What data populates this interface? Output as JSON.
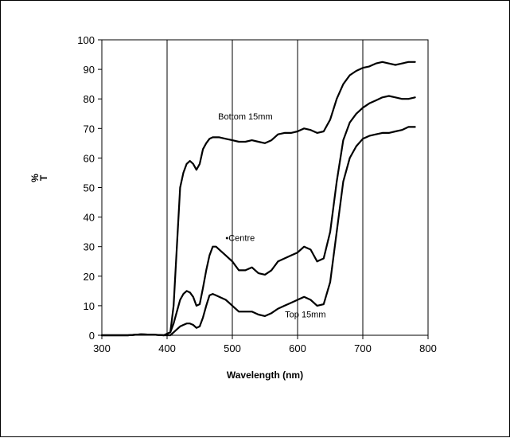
{
  "chart_data": {
    "type": "line",
    "title": "",
    "xlabel": "Wavelength (nm)",
    "ylabel": "%\nT",
    "xlim": [
      300,
      800
    ],
    "ylim": [
      0,
      100
    ],
    "xticks": [
      300,
      400,
      500,
      600,
      700,
      800
    ],
    "yticks": [
      0,
      10,
      20,
      30,
      40,
      50,
      60,
      70,
      80,
      90,
      100
    ],
    "grid": "vertical",
    "legend": "none",
    "line_color": "#000000",
    "series": [
      {
        "name": "Bottom 15mm",
        "x": [
          300,
          320,
          340,
          360,
          380,
          395,
          405,
          410,
          415,
          420,
          425,
          430,
          435,
          440,
          445,
          450,
          455,
          460,
          465,
          470,
          475,
          480,
          490,
          500,
          510,
          520,
          530,
          540,
          550,
          560,
          570,
          580,
          590,
          600,
          610,
          620,
          630,
          640,
          650,
          660,
          670,
          680,
          690,
          700,
          710,
          720,
          730,
          740,
          750,
          760,
          770,
          780
        ],
        "y": [
          0,
          0,
          0,
          0.3,
          0.2,
          0,
          1,
          10,
          30,
          50,
          55,
          58,
          59,
          58,
          56,
          58,
          63,
          65,
          66.5,
          67,
          67,
          67,
          66.5,
          66,
          65.5,
          65.5,
          66,
          65.5,
          65,
          66,
          68,
          68.5,
          68.5,
          69,
          70,
          69.5,
          68.5,
          69,
          73,
          80,
          85,
          88,
          89.5,
          90.5,
          91,
          92,
          92.5,
          92,
          91.5,
          92,
          92.5,
          92.5
        ]
      },
      {
        "name": "Centre",
        "x": [
          300,
          320,
          340,
          360,
          380,
          395,
          405,
          410,
          415,
          420,
          425,
          430,
          435,
          440,
          445,
          450,
          455,
          460,
          465,
          470,
          475,
          480,
          490,
          500,
          510,
          520,
          530,
          540,
          550,
          560,
          570,
          580,
          590,
          600,
          610,
          620,
          630,
          640,
          650,
          660,
          670,
          680,
          690,
          700,
          710,
          720,
          730,
          740,
          750,
          760,
          770,
          780
        ],
        "y": [
          0,
          0,
          0,
          0.3,
          0.2,
          0,
          1,
          4,
          8,
          12,
          14,
          15,
          14.5,
          13,
          10,
          10.5,
          16,
          22,
          27,
          30,
          30,
          29,
          27,
          25,
          22,
          22,
          23,
          21,
          20.5,
          22,
          25,
          26,
          27,
          28,
          30,
          29,
          25,
          26,
          35,
          52,
          66,
          72,
          75,
          77,
          78.5,
          79.5,
          80.5,
          81,
          80.5,
          80,
          80,
          80.5
        ]
      },
      {
        "name": "Top 15mm",
        "x": [
          300,
          320,
          340,
          360,
          380,
          395,
          405,
          410,
          415,
          420,
          425,
          430,
          435,
          440,
          445,
          450,
          455,
          460,
          465,
          470,
          475,
          480,
          490,
          500,
          510,
          520,
          530,
          540,
          550,
          560,
          570,
          580,
          590,
          600,
          610,
          620,
          630,
          640,
          650,
          660,
          670,
          680,
          690,
          700,
          710,
          720,
          730,
          740,
          750,
          760,
          770,
          780
        ],
        "y": [
          0,
          0,
          0,
          0.3,
          0.2,
          0,
          0,
          1,
          2,
          3,
          3.5,
          4,
          4,
          3.5,
          2.5,
          3,
          6,
          10,
          13.5,
          14,
          13.5,
          13,
          12,
          10,
          8,
          8,
          8,
          7,
          6.5,
          7.5,
          9,
          10,
          11,
          12,
          13,
          12,
          10,
          10.5,
          18,
          35,
          52,
          60,
          64,
          66.5,
          67.5,
          68,
          68.5,
          68.5,
          69,
          69.5,
          70.5,
          70.5
        ]
      }
    ],
    "annotations": [
      {
        "text": "Bottom 15mm",
        "x": 520,
        "y": 73
      },
      {
        "text": "•Centre",
        "x": 512,
        "y": 32
      },
      {
        "text": "Top 15mm",
        "x": 612,
        "y": 6
      }
    ]
  }
}
